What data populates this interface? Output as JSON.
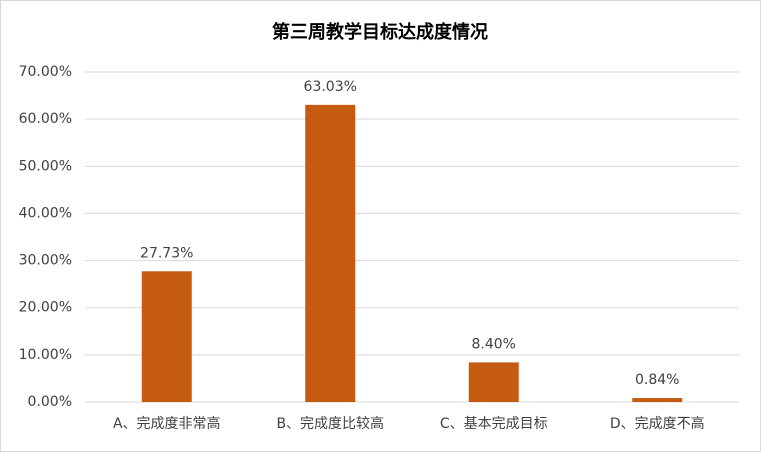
{
  "chart_data": {
    "type": "bar",
    "title": "第三周教学目标达成度情况",
    "categories": [
      "A、完成度非常高",
      "B、完成度比较高",
      "C、基本完成目标",
      "D、完成度不高"
    ],
    "values": [
      27.73,
      63.03,
      8.4,
      0.84
    ],
    "value_labels": [
      "27.73%",
      "63.03%",
      "8.40%",
      "0.84%"
    ],
    "color": "#c55a11",
    "ylim": [
      0,
      70
    ],
    "yticks": [
      {
        "value": 0,
        "label": "0.00%"
      },
      {
        "value": 10,
        "label": "10.00%"
      },
      {
        "value": 20,
        "label": "20.00%"
      },
      {
        "value": 30,
        "label": "30.00%"
      },
      {
        "value": 40,
        "label": "40.00%"
      },
      {
        "value": 50,
        "label": "50.00%"
      },
      {
        "value": 60,
        "label": "60.00%"
      },
      {
        "value": 70,
        "label": "70.00%"
      }
    ],
    "grid": true
  }
}
